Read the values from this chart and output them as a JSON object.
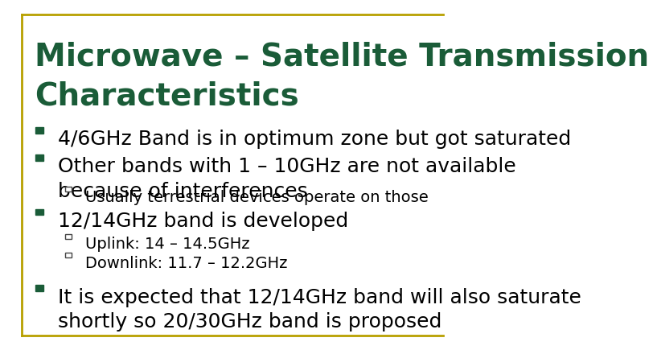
{
  "title_line1": "Microwave – Satellite Transmission",
  "title_line2": "Characteristics",
  "title_color": "#1a5c38",
  "background_color": "#ffffff",
  "border_color": "#b8a000",
  "bullet_color": "#1a5c38",
  "text_color": "#000000",
  "title_fontsize": 28,
  "bullet_fontsize": 18,
  "sub_bullet_fontsize": 14,
  "bullets": [
    {
      "level": 1,
      "text": "4/6GHz Band is in optimum zone but got saturated"
    },
    {
      "level": 1,
      "text": "Other bands with 1 – 10GHz are not available\nbecause of interferences"
    },
    {
      "level": 2,
      "text": "Usually terrestrial devices operate on those"
    },
    {
      "level": 1,
      "text": "12/14GHz band is developed"
    },
    {
      "level": 2,
      "text": "Uplink: 14 – 14.5GHz"
    },
    {
      "level": 2,
      "text": "Downlink: 11.7 – 12.2GHz"
    },
    {
      "level": 1,
      "text": "It is expected that 12/14GHz band will also saturate\nshortly so 20/30GHz band is proposed"
    }
  ]
}
